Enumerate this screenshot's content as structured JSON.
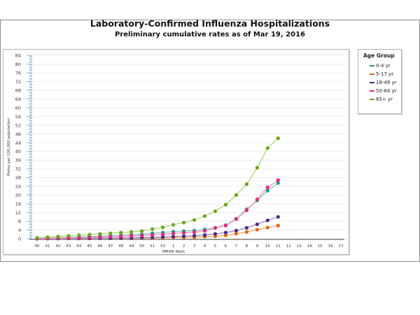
{
  "chart_data": {
    "type": "line",
    "title": "Laboratory-Confirmed Influenza Hospitalizations",
    "subtitle": "Preliminary cumulative rates as of Mar 19, 2016",
    "xlabel": "MMWR Week",
    "ylabel": "Rates per 100,000 population",
    "ylim": [
      0,
      84
    ],
    "yticks": [
      0,
      4,
      8,
      12,
      16,
      20,
      24,
      28,
      32,
      36,
      40,
      44,
      48,
      52,
      56,
      60,
      64,
      68,
      72,
      76,
      80,
      84
    ],
    "categories": [
      "40",
      "41",
      "42",
      "43",
      "44",
      "45",
      "46",
      "47",
      "48",
      "49",
      "50",
      "51",
      "52",
      "1",
      "2",
      "3",
      "4",
      "5",
      "6",
      "7",
      "8",
      "9",
      "10",
      "11",
      "12",
      "13",
      "14",
      "15",
      "16",
      "17"
    ],
    "grid": true,
    "legend_position": "right",
    "legend_title": "Age Group",
    "series": [
      {
        "name": "0-4 yr",
        "color": "#1a9e80",
        "values": [
          0.1,
          0.2,
          0.4,
          0.6,
          0.8,
          1.0,
          1.2,
          1.4,
          1.6,
          1.8,
          2.0,
          2.5,
          2.8,
          3.2,
          3.5,
          3.7,
          4.2,
          5.0,
          6.2,
          9.2,
          13.5,
          17.5,
          22.0,
          25.5
        ]
      },
      {
        "name": "5-17 yr",
        "color": "#e0660f",
        "values": [
          0.0,
          0.0,
          0.1,
          0.1,
          0.1,
          0.1,
          0.2,
          0.2,
          0.2,
          0.2,
          0.3,
          0.3,
          0.4,
          0.5,
          0.6,
          0.7,
          0.9,
          1.1,
          1.5,
          2.3,
          3.1,
          4.1,
          5.1,
          6.0
        ]
      },
      {
        "name": "18-49 yr",
        "color": "#4b2a8c",
        "values": [
          0.0,
          0.1,
          0.1,
          0.2,
          0.2,
          0.2,
          0.3,
          0.3,
          0.4,
          0.4,
          0.5,
          0.6,
          0.8,
          1.0,
          1.2,
          1.4,
          1.7,
          2.2,
          2.8,
          3.7,
          5.0,
          6.6,
          8.4,
          10.0
        ]
      },
      {
        "name": "50-64 yr",
        "color": "#e8267e",
        "values": [
          0.1,
          0.2,
          0.3,
          0.4,
          0.5,
          0.6,
          0.8,
          1.0,
          1.1,
          1.3,
          1.5,
          1.8,
          2.0,
          2.4,
          2.7,
          3.0,
          3.6,
          4.9,
          6.0,
          9.0,
          13.0,
          18.0,
          23.5,
          26.8
        ]
      },
      {
        "name": "65+ yr",
        "color": "#6aa51a",
        "values": [
          0.4,
          0.7,
          1.0,
          1.3,
          1.6,
          1.9,
          2.2,
          2.5,
          2.8,
          3.1,
          3.5,
          4.4,
          5.2,
          6.4,
          7.4,
          8.6,
          10.4,
          12.6,
          15.6,
          20.0,
          25.0,
          32.5,
          41.5,
          46.0
        ]
      }
    ]
  }
}
